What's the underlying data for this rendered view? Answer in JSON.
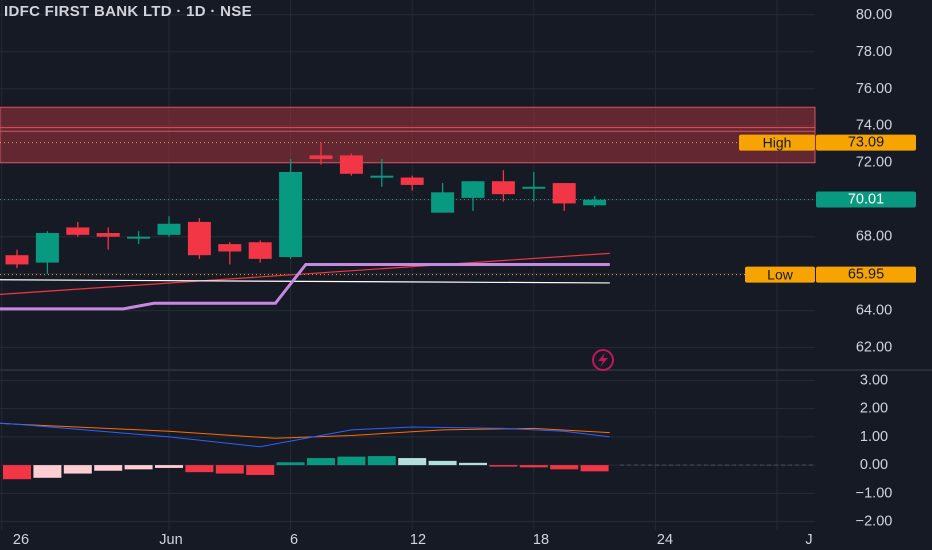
{
  "header": {
    "title": "IDFC FIRST BANK LTD · 1D · NSE"
  },
  "price_pane": {
    "y_ticks": [
      "80.00",
      "78.00",
      "76.00",
      "74.00",
      "72.00",
      "68.00",
      "64.00",
      "62.00"
    ],
    "last_price_label": "70.01",
    "high_label": "High",
    "high_value": "73.09",
    "low_label": "Low",
    "low_value": "65.95"
  },
  "indicator_pane": {
    "y_ticks": [
      "3.00",
      "2.00",
      "1.00",
      "0.00",
      "−1.00",
      "−2.00"
    ]
  },
  "time_axis": {
    "ticks": [
      "26",
      "Jun",
      "6",
      "12",
      "18",
      "24",
      "J"
    ]
  },
  "colors": {
    "background": "#161a25",
    "up": "#089981",
    "down": "#f23645",
    "zone_fill": "#a3333d",
    "accent_orange": "#f7a400",
    "sma_red": "#f23645",
    "trail_purple": "#c58ae0",
    "line_white": "#ffffff",
    "macd_blue": "#2962ff",
    "signal_orange": "#ff6d00",
    "hist_light_red": "#ffcdd2",
    "hist_light_green": "#b2dfdb",
    "grid": "#262a35",
    "text": "#d1d4dc"
  },
  "chart_data": {
    "type": "candlestick",
    "title": "IDFC FIRST BANK LTD · 1D · NSE",
    "ylim": [
      60.9,
      80.8
    ],
    "supply_zone": {
      "low": 72.0,
      "high": 75.0,
      "inner_lines": [
        73.9,
        73.7
      ]
    },
    "high": 73.09,
    "low": 65.95,
    "last": 70.01,
    "candles": [
      {
        "o": 67.0,
        "h": 67.3,
        "l": 66.3,
        "c": 66.5
      },
      {
        "o": 66.6,
        "h": 68.3,
        "l": 66.0,
        "c": 68.2
      },
      {
        "o": 68.5,
        "h": 68.8,
        "l": 68.0,
        "c": 68.1
      },
      {
        "o": 68.2,
        "h": 68.5,
        "l": 67.3,
        "c": 68.0
      },
      {
        "o": 68.0,
        "h": 68.3,
        "l": 67.6,
        "c": 68.0
      },
      {
        "o": 68.1,
        "h": 69.1,
        "l": 68.0,
        "c": 68.7
      },
      {
        "o": 68.8,
        "h": 69.0,
        "l": 66.8,
        "c": 67.0
      },
      {
        "o": 67.6,
        "h": 67.7,
        "l": 66.5,
        "c": 67.2
      },
      {
        "o": 67.7,
        "h": 67.8,
        "l": 66.6,
        "c": 66.8
      },
      {
        "o": 66.9,
        "h": 72.2,
        "l": 66.8,
        "c": 71.5
      },
      {
        "o": 72.4,
        "h": 73.1,
        "l": 71.9,
        "c": 72.2
      },
      {
        "o": 72.4,
        "h": 72.5,
        "l": 71.3,
        "c": 71.4
      },
      {
        "o": 71.2,
        "h": 72.2,
        "l": 70.7,
        "c": 71.3
      },
      {
        "o": 71.2,
        "h": 71.3,
        "l": 70.5,
        "c": 70.8
      },
      {
        "o": 69.3,
        "h": 70.9,
        "l": 69.3,
        "c": 70.4
      },
      {
        "o": 70.1,
        "h": 71.0,
        "l": 69.4,
        "c": 71.0
      },
      {
        "o": 71.0,
        "h": 71.6,
        "l": 69.9,
        "c": 70.3
      },
      {
        "o": 70.7,
        "h": 71.5,
        "l": 69.9,
        "c": 70.7
      },
      {
        "o": 70.9,
        "h": 70.9,
        "l": 69.4,
        "c": 69.8
      },
      {
        "o": 69.7,
        "h": 70.2,
        "l": 69.6,
        "c": 70.0
      }
    ],
    "sma_line": {
      "x0": -4,
      "y0": 64.5,
      "x1": 19.5,
      "y1": 67.1
    },
    "trail_line": [
      [
        -4,
        64.1
      ],
      [
        3.5,
        64.1
      ],
      [
        4.5,
        64.4
      ],
      [
        8.5,
        64.4
      ],
      [
        9.5,
        66.5
      ],
      [
        19.5,
        66.5
      ]
    ],
    "white_line": {
      "x0": -4,
      "y0": 65.7,
      "x1": 19.5,
      "y1": 65.5
    },
    "indicator": {
      "ylim": [
        -2.3,
        3.3
      ],
      "macd": [
        [
          -5,
          1.7
        ],
        [
          0,
          1.45
        ],
        [
          5,
          1.0
        ],
        [
          8,
          0.65
        ],
        [
          9.5,
          0.95
        ],
        [
          11,
          1.25
        ],
        [
          13,
          1.35
        ],
        [
          16,
          1.3
        ],
        [
          18,
          1.2
        ],
        [
          19.5,
          1.0
        ]
      ],
      "signal": [
        [
          -5,
          1.75
        ],
        [
          0,
          1.45
        ],
        [
          5,
          1.2
        ],
        [
          8.5,
          0.95
        ],
        [
          11,
          1.05
        ],
        [
          14,
          1.25
        ],
        [
          17,
          1.3
        ],
        [
          19.5,
          1.15
        ]
      ],
      "histogram": [
        -0.5,
        -0.45,
        -0.3,
        -0.2,
        -0.15,
        -0.1,
        -0.25,
        -0.3,
        -0.35,
        0.1,
        0.25,
        0.3,
        0.32,
        0.25,
        0.15,
        0.08,
        -0.05,
        -0.08,
        -0.15,
        -0.22
      ]
    }
  }
}
